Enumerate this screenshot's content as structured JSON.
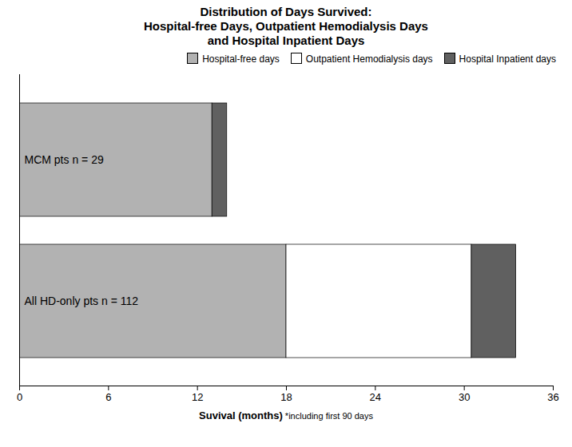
{
  "chart_data": {
    "type": "bar",
    "orientation": "horizontal",
    "stacked": true,
    "title": "Distribution of Days Survived:\nHospital-free Days, Outpatient Hemodialysis Days\nand Hospital Inpatient Days",
    "xlabel": "Suvival (months)",
    "annotations": [
      "*including first 90 days"
    ],
    "categories": [
      "MCM pts n = 29",
      "All HD-only pts n = 112"
    ],
    "series": [
      {
        "name": "Hospital-free days",
        "color": "#b2b2b2",
        "values": [
          13.0,
          18.0
        ]
      },
      {
        "name": "Outpatient Hemodialysis days",
        "color": "#ffffff",
        "values": [
          null,
          12.5
        ]
      },
      {
        "name": "Hospital Inpatient days",
        "color": "#606060",
        "values": [
          1.0,
          3.0
        ]
      }
    ],
    "xlim": [
      0,
      36
    ],
    "xticks": [
      0,
      6,
      12,
      18,
      24,
      30,
      36
    ],
    "legend": "upper right",
    "tick_labels": "x",
    "grid": false
  }
}
